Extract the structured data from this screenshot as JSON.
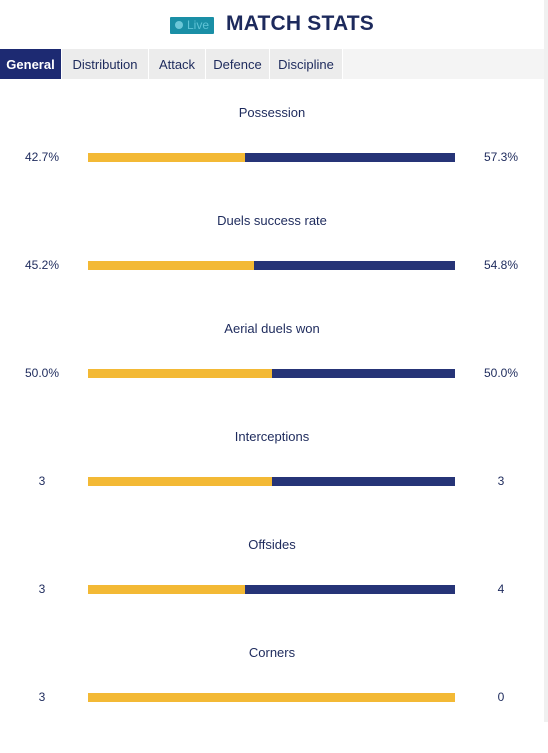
{
  "header": {
    "live_label": "Live",
    "title": "MATCH STATS"
  },
  "tabs": [
    {
      "label": "General",
      "active": true
    },
    {
      "label": "Distribution",
      "active": false
    },
    {
      "label": "Attack",
      "active": false
    },
    {
      "label": "Defence",
      "active": false
    },
    {
      "label": "Discipline",
      "active": false
    }
  ],
  "colors": {
    "home": "#f3b935",
    "away": "#263477",
    "accent": "#1d2a72",
    "live": "#1a8fa6"
  },
  "stats": [
    {
      "label": "Possession",
      "home_display": "42.7%",
      "away_display": "57.3%",
      "home_share": 0.427
    },
    {
      "label": "Duels success rate",
      "home_display": "45.2%",
      "away_display": "54.8%",
      "home_share": 0.452
    },
    {
      "label": "Aerial duels won",
      "home_display": "50.0%",
      "away_display": "50.0%",
      "home_share": 0.5
    },
    {
      "label": "Interceptions",
      "home_display": "3",
      "away_display": "3",
      "home_share": 0.5
    },
    {
      "label": "Offsides",
      "home_display": "3",
      "away_display": "4",
      "home_share": 0.4286
    },
    {
      "label": "Corners",
      "home_display": "3",
      "away_display": "0",
      "home_share": 1.0
    }
  ]
}
